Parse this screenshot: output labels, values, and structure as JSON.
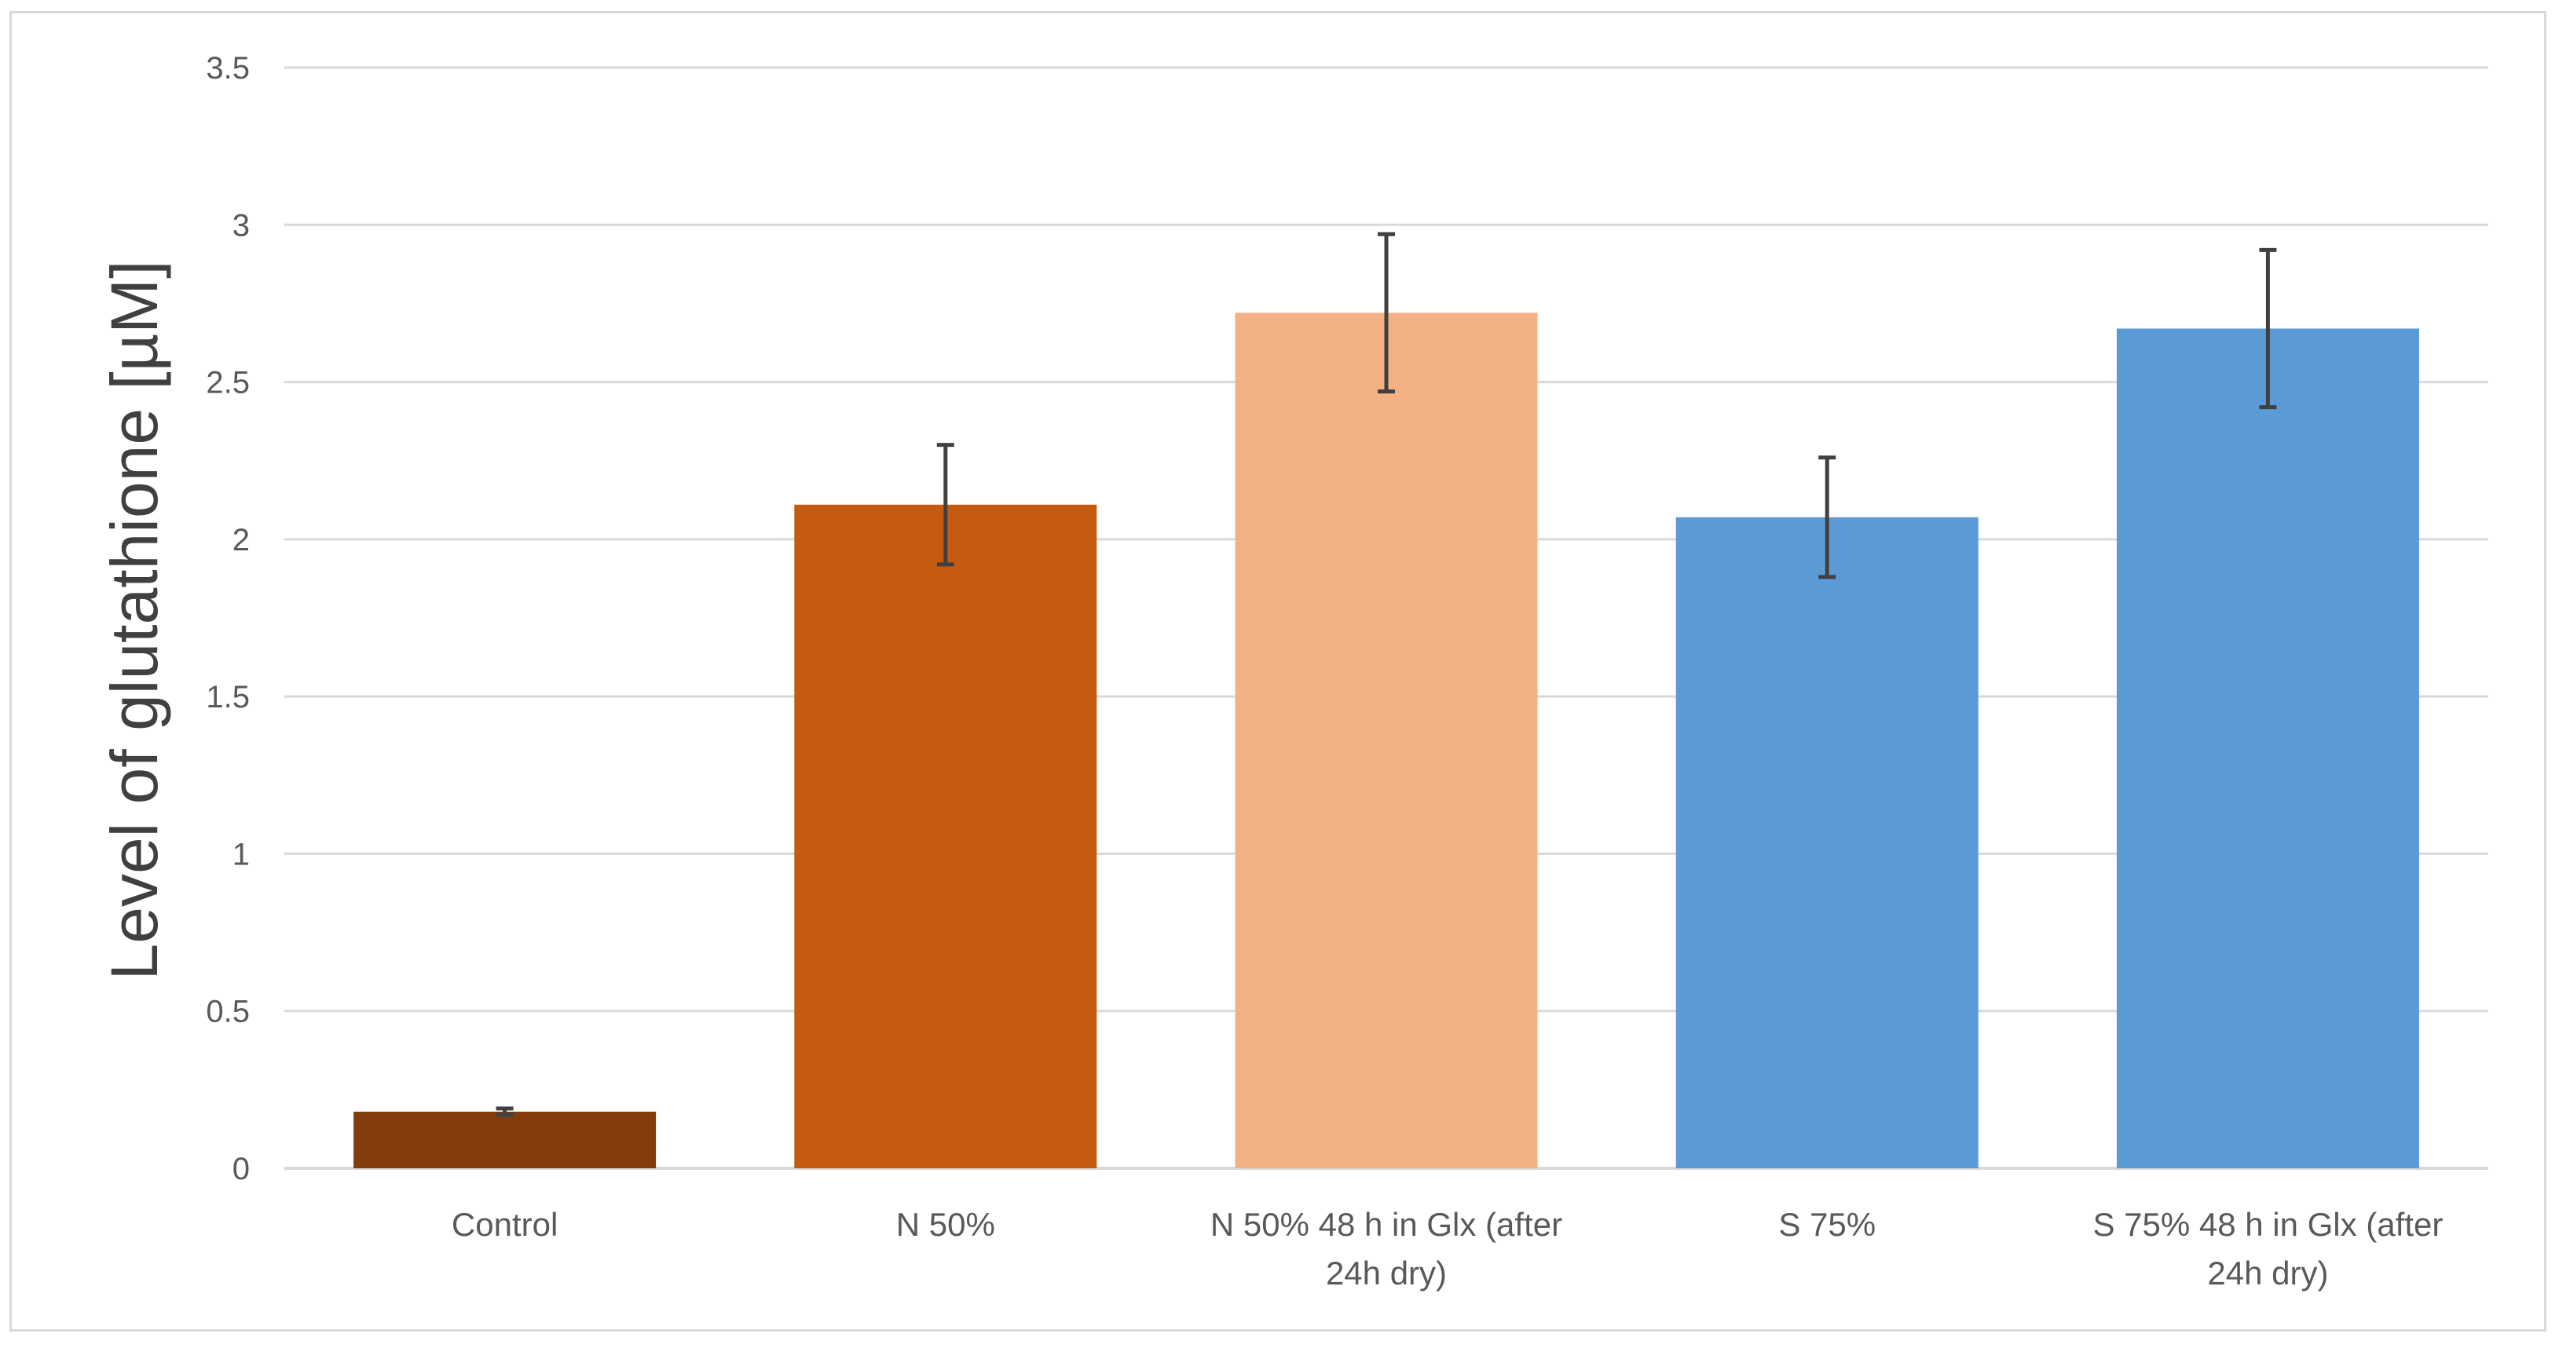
{
  "chart_data": {
    "type": "bar",
    "title": "",
    "xlabel": "",
    "ylabel": "Level of  glutathione [µM]",
    "ylim": [
      0,
      3.5
    ],
    "yticks": [
      "0",
      "0.5",
      "1",
      "1.5",
      "2",
      "2.5",
      "3",
      "3.5"
    ],
    "grid": true,
    "legend": "none",
    "categories": [
      [
        "Control"
      ],
      [
        "N 50%"
      ],
      [
        "N 50%  48 h in Glx (after",
        "24h dry)"
      ],
      [
        "S 75%"
      ],
      [
        "S 75% 48 h in Glx (after",
        "24h dry)"
      ]
    ],
    "values": [
      0.18,
      2.11,
      2.72,
      2.07,
      2.67
    ],
    "errors": [
      0.01,
      0.19,
      0.25,
      0.19,
      0.25
    ],
    "colors": [
      "#843c0c",
      "#c55a11",
      "#f4b183",
      "#5b9bd5",
      "#5b9bd5"
    ],
    "error_bar_color": "#404040",
    "grid_color": "#d9d9d9"
  }
}
